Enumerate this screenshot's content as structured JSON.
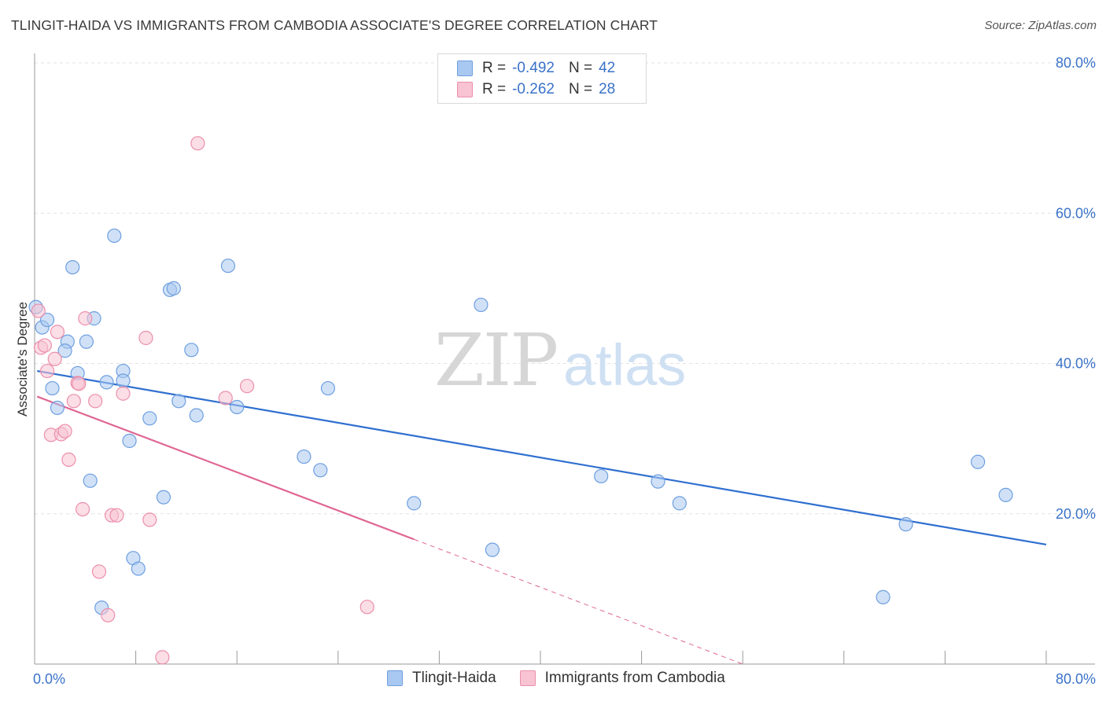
{
  "title": "TLINGIT-HAIDA VS IMMIGRANTS FROM CAMBODIA ASSOCIATE'S DEGREE CORRELATION CHART",
  "source": "Source: ZipAtlas.com",
  "watermark": {
    "zip": "ZIP",
    "atlas": "atlas"
  },
  "legend": {
    "rows": [
      {
        "r_label": "R =",
        "r_value": "-0.492",
        "n_label": "N =",
        "n_value": "42",
        "color": "#a9c8f1",
        "border": "#6e9fe0"
      },
      {
        "r_label": "R =",
        "r_value": "-0.262",
        "n_label": "N =",
        "n_value": "28",
        "color": "#f8c3d2",
        "border": "#ec8fac"
      }
    ]
  },
  "chart_data": {
    "type": "scatter",
    "title": "TLINGIT-HAIDA VS IMMIGRANTS FROM CAMBODIA ASSOCIATE'S DEGREE CORRELATION CHART",
    "xlabel": "",
    "ylabel": "Associate's Degree",
    "xlim": [
      0,
      80
    ],
    "ylim": [
      0,
      80
    ],
    "x_tick_labels": [
      "0.0%",
      "80.0%"
    ],
    "y_ticks": [
      20,
      40,
      60,
      80
    ],
    "y_tick_labels": [
      "20.0%",
      "40.0%",
      "60.0%",
      "80.0%"
    ],
    "grid": true,
    "series": [
      {
        "name": "Tlingit-Haida",
        "color": "#6e9fe0",
        "fill": "#a9c8f1",
        "line_color": "#2f6fd0",
        "trend": {
          "x": [
            0.2,
            80
          ],
          "y": [
            39.0,
            15.9
          ]
        },
        "points": [
          [
            0.1,
            47.5
          ],
          [
            0.6,
            44.8
          ],
          [
            1.0,
            45.8
          ],
          [
            1.4,
            36.7
          ],
          [
            1.8,
            34.1
          ],
          [
            2.6,
            42.9
          ],
          [
            2.4,
            41.7
          ],
          [
            3.0,
            52.8
          ],
          [
            3.4,
            38.7
          ],
          [
            4.1,
            42.9
          ],
          [
            4.4,
            24.4
          ],
          [
            4.7,
            46.0
          ],
          [
            5.3,
            7.5
          ],
          [
            5.7,
            37.5
          ],
          [
            6.3,
            57.0
          ],
          [
            7.0,
            39.0
          ],
          [
            7.0,
            37.7
          ],
          [
            7.5,
            29.7
          ],
          [
            7.8,
            14.1
          ],
          [
            8.2,
            12.7
          ],
          [
            9.1,
            32.7
          ],
          [
            10.2,
            22.2
          ],
          [
            10.7,
            49.8
          ],
          [
            11.0,
            50.0
          ],
          [
            11.4,
            35.0
          ],
          [
            12.4,
            41.8
          ],
          [
            12.8,
            33.1
          ],
          [
            15.3,
            53.0
          ],
          [
            16.0,
            34.2
          ],
          [
            21.3,
            27.6
          ],
          [
            22.6,
            25.8
          ],
          [
            23.2,
            36.7
          ],
          [
            30.0,
            21.4
          ],
          [
            35.3,
            47.8
          ],
          [
            36.2,
            15.2
          ],
          [
            44.8,
            25.0
          ],
          [
            49.3,
            24.3
          ],
          [
            51.0,
            21.4
          ],
          [
            67.1,
            8.9
          ],
          [
            68.9,
            18.6
          ],
          [
            74.6,
            26.9
          ],
          [
            76.8,
            22.5
          ]
        ]
      },
      {
        "name": "Immigrants from Cambodia",
        "color": "#ec8fac",
        "fill": "#f8c3d2",
        "line_color": "#e06693",
        "trend": {
          "x": [
            0.2,
            30.0
          ],
          "y": [
            35.6,
            16.6
          ]
        },
        "trend_dashed": {
          "x": [
            30.0,
            56.0
          ],
          "y": [
            16.6,
            0.0
          ]
        },
        "points": [
          [
            0.3,
            47.0
          ],
          [
            0.5,
            42.1
          ],
          [
            0.8,
            42.4
          ],
          [
            1.0,
            39.0
          ],
          [
            1.3,
            30.5
          ],
          [
            1.6,
            40.6
          ],
          [
            1.8,
            44.2
          ],
          [
            2.1,
            30.6
          ],
          [
            2.4,
            31.0
          ],
          [
            2.7,
            27.2
          ],
          [
            3.1,
            35.0
          ],
          [
            3.4,
            37.4
          ],
          [
            3.5,
            37.3
          ],
          [
            3.8,
            20.6
          ],
          [
            4.0,
            46.0
          ],
          [
            4.8,
            35.0
          ],
          [
            5.1,
            12.3
          ],
          [
            5.8,
            6.5
          ],
          [
            6.1,
            19.8
          ],
          [
            6.5,
            19.8
          ],
          [
            7.0,
            36.0
          ],
          [
            8.8,
            43.4
          ],
          [
            9.1,
            19.2
          ],
          [
            10.1,
            0.9
          ],
          [
            12.9,
            69.3
          ],
          [
            15.1,
            35.4
          ],
          [
            16.8,
            37.0
          ],
          [
            26.3,
            7.6
          ]
        ]
      }
    ]
  },
  "bottom_legend": [
    {
      "label": "Tlingit-Haida",
      "color": "#a9c8f1",
      "border": "#6e9fe0"
    },
    {
      "label": "Immigrants from Cambodia",
      "color": "#f8c3d2",
      "border": "#ec8fac"
    }
  ]
}
